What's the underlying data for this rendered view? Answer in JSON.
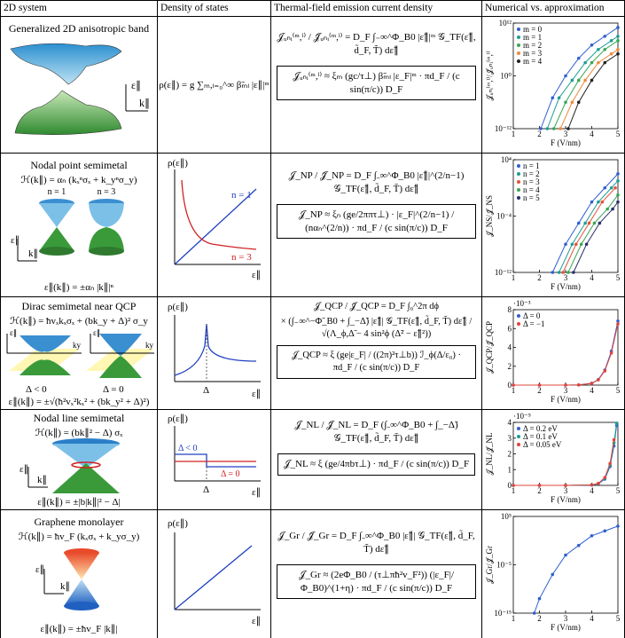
{
  "header": [
    "2D system",
    "Density of states",
    "Thermal-field emission current density",
    "Numerical vs. approximation"
  ],
  "rows": [
    {
      "system": "Generalized 2D anisotropic band",
      "sketch_labels": [
        "ε∥",
        "k∥"
      ],
      "dos": {
        "equation": "ρ(ε∥) = g ∑ₘ,ₗ₌₀^∞ β̃ₘₗ |ε∥|ᵐ"
      },
      "current": {
        "equation": [
          "𝒥ᵤₙᵢ⁽ᵐ,ˡ⁾ / 𝒥̃ᵤₙᵢ⁽ᵐ,ˡ⁾ = D_F ∫₋∞^Φ_B0 |ε̃∥|ᵐ 𝒢_TF(ε̃∥, d̃_F, T̃) dε̃∥"
        ],
        "approximation": "𝒥ᵤₙᵢ⁽ᵐ,ˡ⁾ ≈ ξₘ (gc/τ⊥) β̃ₘₗ |ε_F|ᵐ · πd_F / (c sin(π/c)) D_F"
      },
      "chart": {
        "type": "line",
        "yscale": "log",
        "legend": "upper left",
        "x_label": "F (V/nm)",
        "y_label": "𝒥ᵤₙᵢ⁽ᵐ,ˡ⁾/𝒥̃ᵤₙᵢ⁽ᵐ,ˡ⁾",
        "xlim": [
          1,
          5
        ],
        "xticks": [
          1,
          2,
          3,
          4,
          5
        ],
        "ylim": [
          1e-12,
          1000000000000.0
        ],
        "yticks": [
          {
            "value": 1e-12,
            "label": "10⁻¹²"
          },
          {
            "value": 1,
            "label": "10⁰"
          },
          {
            "value": 1000000000000.0,
            "label": "10¹²"
          }
        ],
        "series": [
          {
            "name": "m = 0",
            "color": "#2f5fd0",
            "x": [
              2.05,
              2.5,
              3,
              3.5,
              4,
              4.5,
              5
            ],
            "values": [
              1e-12,
              1e-05,
              1,
              10000.0,
              10000000.0,
              1000000000.0,
              100000000000.0
            ]
          },
          {
            "name": "m = 1",
            "color": "#1d9e94",
            "x": [
              2.3,
              2.75,
              3.25,
              3.75,
              4.25,
              4.75,
              5
            ],
            "values": [
              1e-12,
              1e-05,
              0.1,
              1000.0,
              1000000.0,
              100000000.0,
              1000000000.0
            ]
          },
          {
            "name": "m = 2",
            "color": "#3aa655",
            "x": [
              2.55,
              3,
              3.5,
              4,
              4.5,
              5
            ],
            "values": [
              1e-12,
              1e-06,
              0.1,
              1000.0,
              1000000.0,
              100000000.0
            ]
          },
          {
            "name": "m = 3",
            "color": "#f08a3c",
            "x": [
              2.8,
              3.25,
              3.75,
              4.25,
              4.75,
              5
            ],
            "values": [
              1e-12,
              1e-06,
              0.1,
              1000.0,
              100000.0,
              1000000.0
            ]
          },
          {
            "name": "m = 4",
            "color": "#222222",
            "x": [
              3.1,
              3.5,
              4,
              4.5,
              5
            ],
            "values": [
              1e-12,
              1e-06,
              0.1,
              1000.0,
              100000.0
            ]
          }
        ]
      }
    },
    {
      "system": "Nodal point semimetal",
      "hamiltonian": "ℋ(k∥) = αₙ (kₓⁿσₓ + k_yⁿσ_y)",
      "dispersion": "ε∥(k∥) = ±αₙ |k∥|ⁿ",
      "sketch_labels": [
        "n = 1",
        "n = 3",
        "ε∥",
        "k∥"
      ],
      "dos": {
        "y_label": "ρ(ε∥)",
        "x_label": "ε∥",
        "labels": [
          "n = 1",
          "n = 3"
        ]
      },
      "current": {
        "equation": [
          "𝒥_NP / 𝒥̃_NP = D_F ∫₋∞^Φ_B0 |ε̃∥|^(2/n−1) 𝒢_TF(ε̃∥, d̃_F, T̃) dε̃∥"
        ],
        "approximation": "𝒥_NP ≈ ξₙ (ge/2ππτ⊥) · |ε_F|^(2/n−1) / (nαₙ^(2/n)) · πd_F / (c sin(π/c)) D_F"
      },
      "chart": {
        "type": "line",
        "yscale": "log",
        "legend": "upper left",
        "x_label": "F (V/nm)",
        "y_label": "𝒥_NS/𝒥̃_NS",
        "xlim": [
          1,
          5
        ],
        "xticks": [
          1,
          2,
          3,
          4,
          5
        ],
        "ylim": [
          1e-12,
          10000.0
        ],
        "yticks": [
          {
            "value": 1e-12,
            "label": "10⁻¹²"
          },
          {
            "value": 0.0001,
            "label": "10⁻⁴"
          },
          {
            "value": 10000.0,
            "label": "10⁴"
          }
        ],
        "series": [
          {
            "name": "n = 1",
            "color": "#2f5fd0",
            "x": [
              2.5,
              3,
              3.5,
              4,
              4.5,
              5
            ],
            "values": [
              1e-12,
              1e-08,
              1e-05,
              0.01,
              1,
              100
            ]
          },
          {
            "name": "n = 2",
            "color": "#1d9e94",
            "x": [
              2.75,
              3.25,
              3.75,
              4.25,
              4.75,
              5
            ],
            "values": [
              1e-12,
              1e-08,
              1e-05,
              0.01,
              1,
              10
            ]
          },
          {
            "name": "n = 3",
            "color": "#e2553a",
            "x": [
              2.9,
              3.4,
              3.9,
              4.4,
              4.9
            ],
            "values": [
              1e-12,
              1e-08,
              1e-05,
              0.01,
              1
            ]
          },
          {
            "name": "n = 4",
            "color": "#3aa655",
            "x": [
              3.1,
              3.6,
              4.1,
              4.6,
              5
            ],
            "values": [
              1e-12,
              1e-08,
              1e-05,
              0.001,
              0.1
            ]
          },
          {
            "name": "n = 5",
            "color": "#2a2f6a",
            "x": [
              3.3,
              3.8,
              4.3,
              4.8,
              5
            ],
            "values": [
              1e-12,
              1e-08,
              1e-05,
              0.001,
              0.01
            ]
          }
        ]
      }
    },
    {
      "system": "Dirac semimetal near QCP",
      "hamiltonian": "ℋ(k∥) = ħvₓkₓσₓ + (bk_y + Δ)² σ_y",
      "dispersion": "ε∥(k∥) = ±√(ħ²vₓ²kₓ² + (bk_y² + Δ)²)",
      "sketch_labels": [
        "ε∥",
        "ky",
        "ε∥",
        "ky",
        "Δ < 0",
        "Δ = 0"
      ],
      "dos": {
        "y_label": "ρ(ε∥)",
        "x_label": "ε∥",
        "labels": [
          "Δ"
        ]
      },
      "current": {
        "equation": [
          "𝒥_QCP / 𝒥̃_QCP = D_F ∫₀^2π dϕ",
          "× (∫₋∞^−Φ̃_B0 + ∫_−Δ̃) |ε̃∥| 𝒢_TF(ε̃∥, d̃_F, T̃) dε̃∥ / √(Λ_ϕ,Δ̃ − 4 sin²ϕ (Δ̃² − ε̃∥²))"
        ],
        "approximation": "𝒥_QCP ≈ ξ (ge|ε_F| / ((2π)²τ⊥b)) ℐ_ϕ(Δ/ε₀) · πd_F / (c sin(π/c)) D_F"
      },
      "chart": {
        "type": "line",
        "yscale": "linear",
        "legend": "upper left",
        "x_label": "F (V/nm)",
        "y_label": "𝒥_QCP/𝒥̃_QCP",
        "y_offset_label": "·10⁻³",
        "xlim": [
          1,
          5
        ],
        "xticks": [
          1,
          2,
          3,
          4,
          5
        ],
        "ylim": [
          0,
          8
        ],
        "yticks": [
          0,
          2,
          4,
          6,
          8
        ],
        "series": [
          {
            "name": "Δ = 0",
            "color": "#2f5fd0",
            "x": [
              1,
              2,
              3,
              3.5,
              4,
              4.25,
              4.5,
              4.75,
              5
            ],
            "values": [
              0,
              0,
              0,
              0.02,
              0.2,
              0.6,
              1.6,
              3.6,
              6.8
            ]
          },
          {
            "name": "Δ = −1",
            "color": "#e2453a",
            "x": [
              1,
              2,
              3,
              3.5,
              4,
              4.25,
              4.5,
              4.75,
              5
            ],
            "values": [
              0,
              0,
              0,
              0.02,
              0.18,
              0.55,
              1.5,
              3.4,
              6.5
            ]
          }
        ]
      }
    },
    {
      "system": "Nodal line semimetal",
      "hamiltonian": "ℋ(k∥) = (bk∥² − Δ) σₓ",
      "dispersion": "ε∥(k∥) = ±|b|k∥|² − Δ|",
      "sketch_labels": [
        "ε∥",
        "k∥"
      ],
      "dos": {
        "y_label": "ρ(ε∥)",
        "x_label": "ε∥",
        "labels": [
          "Δ < 0",
          "Δ = 0",
          "Δ"
        ]
      },
      "current": {
        "equation": [
          "𝒥_NL / 𝒥̃_NL = D_F (∫₋∞^Φ_B0 + ∫_−Δ̃) 𝒢_TF(ε̃∥, d̃_F, T̃) dε̃∥"
        ],
        "approximation": "𝒥_NL ≈ ξ (ge/4πbτ⊥) · πd_F / (c sin(π/c)) D_F"
      },
      "chart": {
        "type": "line",
        "yscale": "linear",
        "legend": "upper left",
        "x_label": "F (V/nm)",
        "y_label": "𝒥_NL/𝒥̃_NL",
        "y_offset_label": "·10⁻⁵",
        "xlim": [
          1,
          5
        ],
        "xticks": [
          1,
          2,
          3,
          4,
          5
        ],
        "ylim": [
          0,
          4
        ],
        "yticks": [
          0,
          1,
          2,
          3,
          4
        ],
        "series": [
          {
            "name": "Δ = 0.2 eV",
            "color": "#2f5fd0",
            "x": [
              1,
              2,
              3,
              4,
              4.25,
              4.5,
              4.7,
              4.85,
              4.95
            ],
            "values": [
              0,
              0,
              0,
              0.02,
              0.1,
              0.4,
              1.2,
              2.5,
              3.8
            ]
          },
          {
            "name": "Δ = 0.1 eV",
            "color": "#1d9e94",
            "x": [
              1,
              2,
              3,
              4,
              4.25,
              4.5,
              4.7,
              4.85,
              4.95
            ],
            "values": [
              0,
              0,
              0,
              0.03,
              0.12,
              0.45,
              1.3,
              2.7,
              3.95
            ]
          },
          {
            "name": "Δ = 0.05 eV",
            "color": "#e2453a",
            "x": [
              1,
              2,
              3,
              4,
              4.25,
              4.5,
              4.7,
              4.85
            ],
            "values": [
              0,
              0,
              0,
              0.03,
              0.13,
              0.5,
              1.4,
              2.9
            ]
          }
        ]
      }
    },
    {
      "system": "Graphene monolayer",
      "hamiltonian": "ℋ(k∥) = ħv_F (kₓσₓ + k_yσ_y)",
      "dispersion": "ε∥(k∥) = ±ħv_F |k∥|",
      "sketch_labels": [
        "ε∥",
        "k∥"
      ],
      "dos": {
        "y_label": "ρ(ε∥)",
        "x_label": "ε∥",
        "labels": []
      },
      "current": {
        "equation": [
          "𝒥_Gr / 𝒥̃_Gr = D_F ∫₋∞^Φ_B0 |ε̃∥| 𝒢_TF(ε̃∥, d̃_F, T̃) dε̃∥"
        ],
        "approximation": "𝒥_Gr ≈ (2eΦ_B0 / (τ⊥πħ²v_F²)) (|ε_F|/Φ_B0)^(1+η) · πd_F / (c sin(π/c)) D_F"
      },
      "chart": {
        "type": "line",
        "yscale": "log",
        "x_label": "F (V/nm)",
        "y_label": "𝒥_Gr/𝒥̃_Gr",
        "xlim": [
          1,
          5
        ],
        "xticks": [
          1,
          2,
          3,
          4,
          5
        ],
        "ylim": [
          1e-15,
          100000.0
        ],
        "yticks": [
          {
            "value": 1e-15,
            "label": "10⁻¹⁵"
          },
          {
            "value": 1e-05,
            "label": "10⁻⁵"
          },
          {
            "value": 100000.0,
            "label": "10⁵"
          }
        ],
        "series": [
          {
            "color": "#2f5fd0",
            "x": [
              1.8,
              2,
              2.5,
              3,
              3.5,
              4,
              4.5,
              5
            ],
            "values": [
              1e-15,
              1e-12,
              1e-07,
              0.001,
              0.1,
              10,
              100,
              1000
            ]
          }
        ]
      }
    }
  ]
}
